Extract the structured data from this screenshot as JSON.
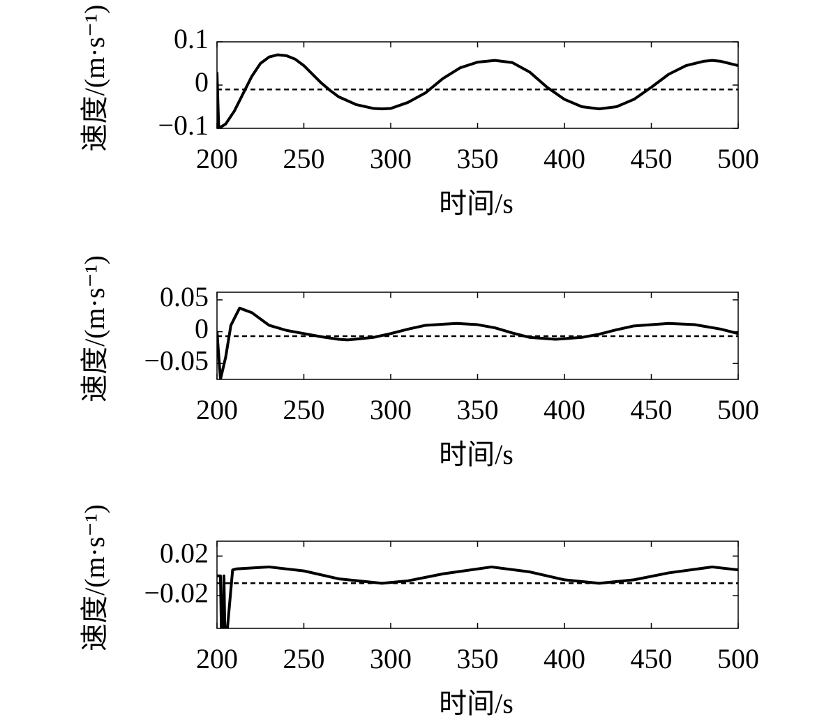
{
  "chart_data": [
    {
      "type": "line",
      "xlabel": "时间/s",
      "ylabel": "速度/(m·s⁻¹)",
      "xlim": [
        200,
        500
      ],
      "xticks": [
        200,
        250,
        300,
        350,
        400,
        450,
        500
      ],
      "ylim": [
        -0.1,
        0.1
      ],
      "yticks": [
        {
          "value": -0.1,
          "label": "−0.1"
        },
        0,
        0.1
      ],
      "x": [
        200,
        201,
        205,
        210,
        215,
        220,
        225,
        230,
        235,
        240,
        245,
        250,
        255,
        260,
        265,
        270,
        280,
        290,
        295,
        300,
        310,
        320,
        330,
        340,
        350,
        360,
        370,
        380,
        390,
        400,
        410,
        420,
        430,
        440,
        450,
        460,
        470,
        480,
        485,
        490,
        500
      ],
      "series": [
        {
          "color": "#000000",
          "values": [
            0.03,
            -0.1,
            -0.09,
            -0.06,
            -0.02,
            0.02,
            0.05,
            0.065,
            0.07,
            0.068,
            0.06,
            0.045,
            0.025,
            0.005,
            -0.012,
            -0.027,
            -0.045,
            -0.054,
            -0.055,
            -0.054,
            -0.04,
            -0.018,
            0.015,
            0.04,
            0.053,
            0.057,
            0.052,
            0.03,
            -0.005,
            -0.033,
            -0.05,
            -0.055,
            -0.05,
            -0.033,
            -0.005,
            0.025,
            0.045,
            0.055,
            0.057,
            0.055,
            0.045
          ]
        }
      ],
      "hline": {
        "value": -0.01,
        "dashed": true,
        "color": "#000000"
      }
    },
    {
      "type": "line",
      "xlabel": "时间/s",
      "ylabel": "速度/(m·s⁻¹)",
      "xlim": [
        200,
        500
      ],
      "xticks": [
        200,
        250,
        300,
        350,
        400,
        450,
        500
      ],
      "ylim": [
        -0.075,
        0.062
      ],
      "yticks": [
        {
          "value": -0.05,
          "label": "−0.05"
        },
        0,
        0.05
      ],
      "x": [
        200,
        202,
        205,
        208,
        213,
        220,
        230,
        240,
        250,
        260,
        270,
        275,
        290,
        300,
        310,
        320,
        338,
        350,
        360,
        370,
        380,
        395,
        410,
        420,
        430,
        440,
        460,
        475,
        490,
        500
      ],
      "series": [
        {
          "color": "#000000",
          "values": [
            0,
            -0.075,
            -0.04,
            0.01,
            0.037,
            0.03,
            0.01,
            0.002,
            -0.003,
            -0.008,
            -0.012,
            -0.013,
            -0.009,
            -0.003,
            0.004,
            0.01,
            0.013,
            0.011,
            0.006,
            -0.002,
            -0.009,
            -0.012,
            -0.009,
            -0.004,
            0.003,
            0.009,
            0.013,
            0.011,
            0.004,
            -0.003
          ]
        }
      ],
      "hline": {
        "value": -0.007,
        "dashed": true,
        "color": "#000000"
      }
    },
    {
      "type": "line",
      "xlabel": "时间/s",
      "ylabel": "速度/(m·s⁻¹)",
      "xlim": [
        200,
        500
      ],
      "xticks": [
        200,
        250,
        300,
        350,
        400,
        450,
        500
      ],
      "ylim": [
        -0.053,
        0.035
      ],
      "yticks": [
        {
          "value": -0.02,
          "label": "−0.02"
        },
        {
          "value": 0.02,
          "label": "0.02"
        }
      ],
      "x": [
        200,
        202,
        202.5,
        203.5,
        204,
        204.5,
        206,
        209,
        211,
        230,
        250,
        270,
        295,
        310,
        330,
        358,
        380,
        400,
        420,
        440,
        460,
        485,
        500
      ],
      "series": [
        {
          "color": "#000000",
          "values": [
            0,
            0,
            -0.053,
            -0.053,
            0,
            -0.053,
            -0.053,
            0.006,
            0.007,
            0.009,
            0.005,
            -0.003,
            -0.0075,
            -0.005,
            0.002,
            0.009,
            0.004,
            -0.004,
            -0.0075,
            -0.004,
            0.003,
            0.009,
            0.006
          ]
        }
      ],
      "hline": {
        "value": -0.0074,
        "dashed": true,
        "color": "#000000"
      }
    }
  ]
}
